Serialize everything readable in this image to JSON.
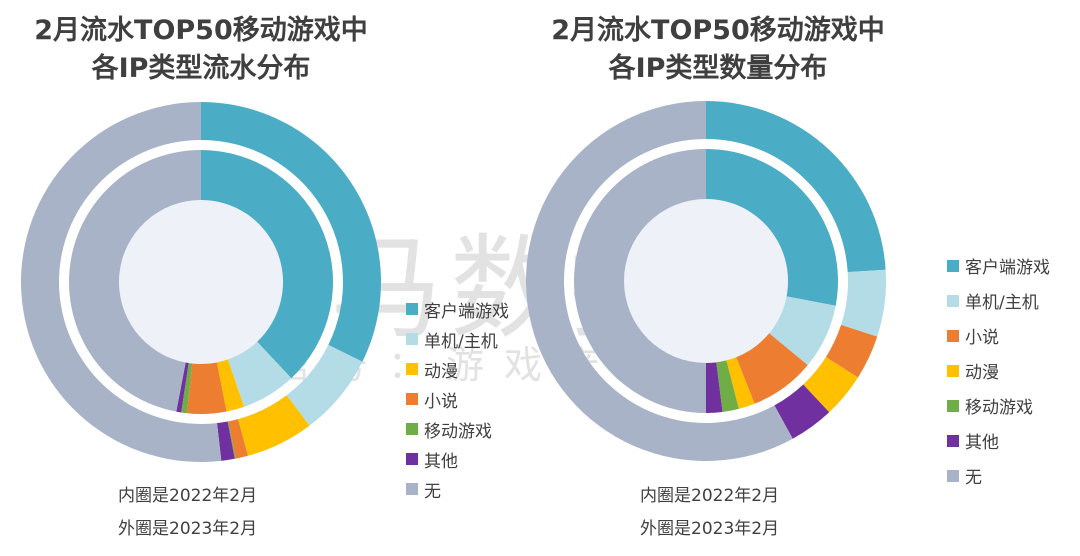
{
  "colors": {
    "客户端游戏": "#4bacc6",
    "单机/主机": "#b4dce6",
    "动漫": "#ffc000",
    "小说": "#ed7d31",
    "移动游戏": "#70ad47",
    "其他": "#7030a0",
    "无": "#a8b3c7"
  },
  "watermark": {
    "main": "伽马数据",
    "sub": "微信号：游戏产业报告"
  },
  "chart_data": [
    {
      "type": "pie",
      "variant": "nested-donut",
      "title_lines": [
        "2月流水TOP50移动游戏中",
        "各IP类型流水分布"
      ],
      "legend": [
        "客户端游戏",
        "单机/主机",
        "动漫",
        "小说",
        "移动游戏",
        "其他",
        "无"
      ],
      "legend_placement": "right",
      "notes": [
        "内圈是2022年2月",
        "外圈是2023年2月"
      ],
      "unit": "%",
      "inner": {
        "period": "2022年2月",
        "categories": [
          "客户端游戏",
          "单机/主机",
          "动漫",
          "小说",
          "移动游戏",
          "其他",
          "无"
        ],
        "values": [
          38.0,
          6.7,
          2.2,
          4.8,
          0.7,
          0.6,
          47.0
        ]
      },
      "outer": {
        "period": "2023年2月",
        "categories": [
          "客户端游戏",
          "单机/主机",
          "动漫",
          "小说",
          "移动游戏",
          "其他",
          "无"
        ],
        "values": [
          32.3,
          7.4,
          6.1,
          1.1,
          0.1,
          1.2,
          51.8
        ]
      }
    },
    {
      "type": "pie",
      "variant": "nested-donut",
      "title_lines": [
        "2月流水TOP50移动游戏中",
        "各IP类型数量分布"
      ],
      "legend": [
        "客户端游戏",
        "单机/主机",
        "小说",
        "动漫",
        "移动游戏",
        "其他",
        "无"
      ],
      "legend_placement": "right",
      "notes": [
        "内圈是2022年2月",
        "外圈是2023年2月"
      ],
      "unit": "%",
      "inner": {
        "period": "2022年2月",
        "categories": [
          "客户端游戏",
          "单机/主机",
          "小说",
          "动漫",
          "移动游戏",
          "其他",
          "无"
        ],
        "values": [
          28,
          8,
          8,
          2,
          2,
          2,
          50
        ]
      },
      "outer": {
        "period": "2023年2月",
        "categories": [
          "客户端游戏",
          "单机/主机",
          "小说",
          "动漫",
          "移动游戏",
          "其他",
          "无"
        ],
        "values": [
          24,
          6,
          4,
          4,
          0,
          4,
          58
        ]
      }
    }
  ]
}
